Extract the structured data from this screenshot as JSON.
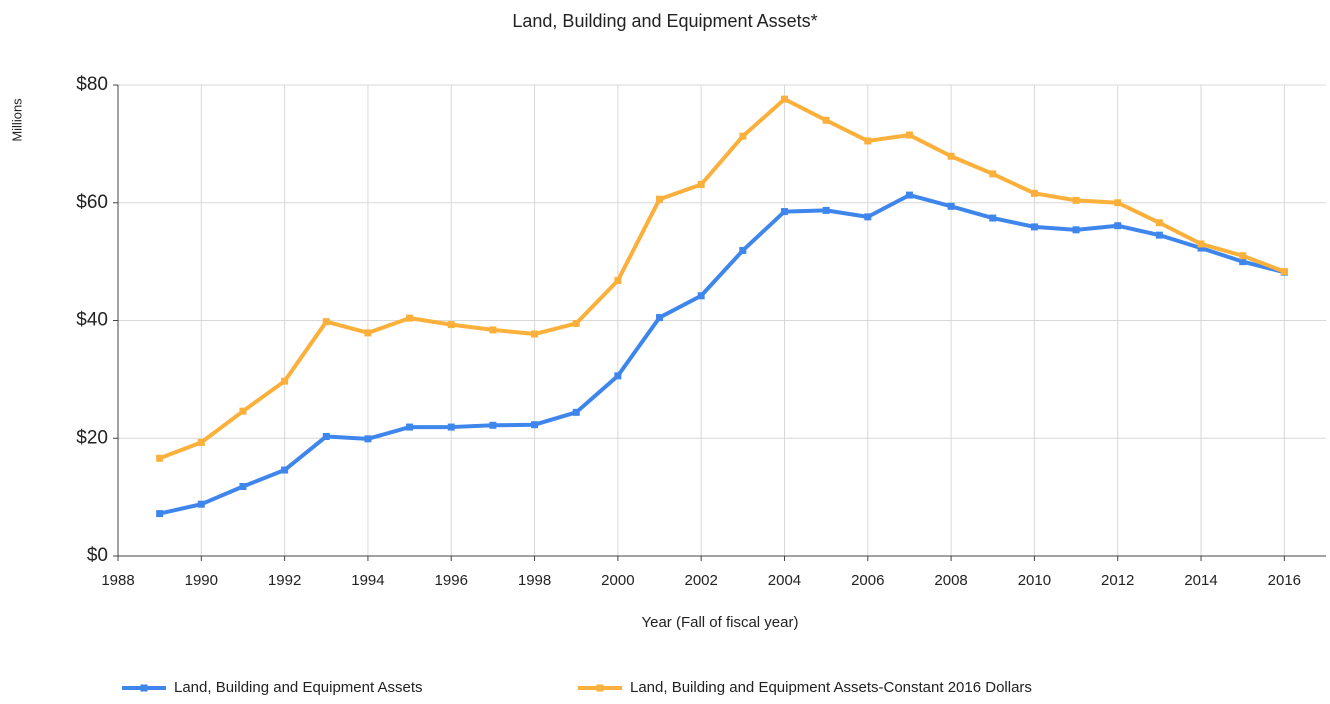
{
  "chart_data": {
    "type": "line",
    "title": "Land, Building and Equipment Assets*",
    "x_label": "Year (Fall of fiscal year)",
    "y_label": "Millions",
    "x": [
      1989,
      1990,
      1991,
      1992,
      1993,
      1994,
      1995,
      1996,
      1997,
      1998,
      1999,
      2000,
      2001,
      2002,
      2003,
      2004,
      2005,
      2006,
      2007,
      2008,
      2009,
      2010,
      2011,
      2012,
      2013,
      2014,
      2015,
      2016
    ],
    "series": [
      {
        "name": "Land, Building and Equipment Assets",
        "color": "#3f86ec",
        "values": [
          7.2,
          8.8,
          11.8,
          14.6,
          20.3,
          19.9,
          21.9,
          21.9,
          22.2,
          22.3,
          24.4,
          30.6,
          40.5,
          44.2,
          51.9,
          58.5,
          58.7,
          57.6,
          61.3,
          59.4,
          57.4,
          55.9,
          55.4,
          56.1,
          54.5,
          52.3,
          50.0,
          48.2
        ]
      },
      {
        "name": "Land, Building and Equipment Assets-Constant 2016 Dollars",
        "color": "#fbb03b",
        "values": [
          16.6,
          19.3,
          24.6,
          29.7,
          39.8,
          37.9,
          40.4,
          39.3,
          38.4,
          37.7,
          39.5,
          46.8,
          60.6,
          63.1,
          71.3,
          77.6,
          74.0,
          70.5,
          71.5,
          67.9,
          64.9,
          61.6,
          60.4,
          60.0,
          56.6,
          53.0,
          51.0,
          48.3
        ]
      }
    ],
    "xlim": [
      1988,
      2017
    ],
    "xticks": [
      1988,
      1990,
      1992,
      1994,
      1996,
      1998,
      2000,
      2002,
      2004,
      2006,
      2008,
      2010,
      2012,
      2014,
      2016
    ],
    "ylim": [
      0,
      80
    ],
    "yticks": [
      {
        "value": 0,
        "label": "$0"
      },
      {
        "value": 20,
        "label": "$20"
      },
      {
        "value": 40,
        "label": "$40"
      },
      {
        "value": 60,
        "label": "$60"
      },
      {
        "value": 80,
        "label": "$80"
      }
    ],
    "grid": true,
    "legend": "bottom"
  }
}
